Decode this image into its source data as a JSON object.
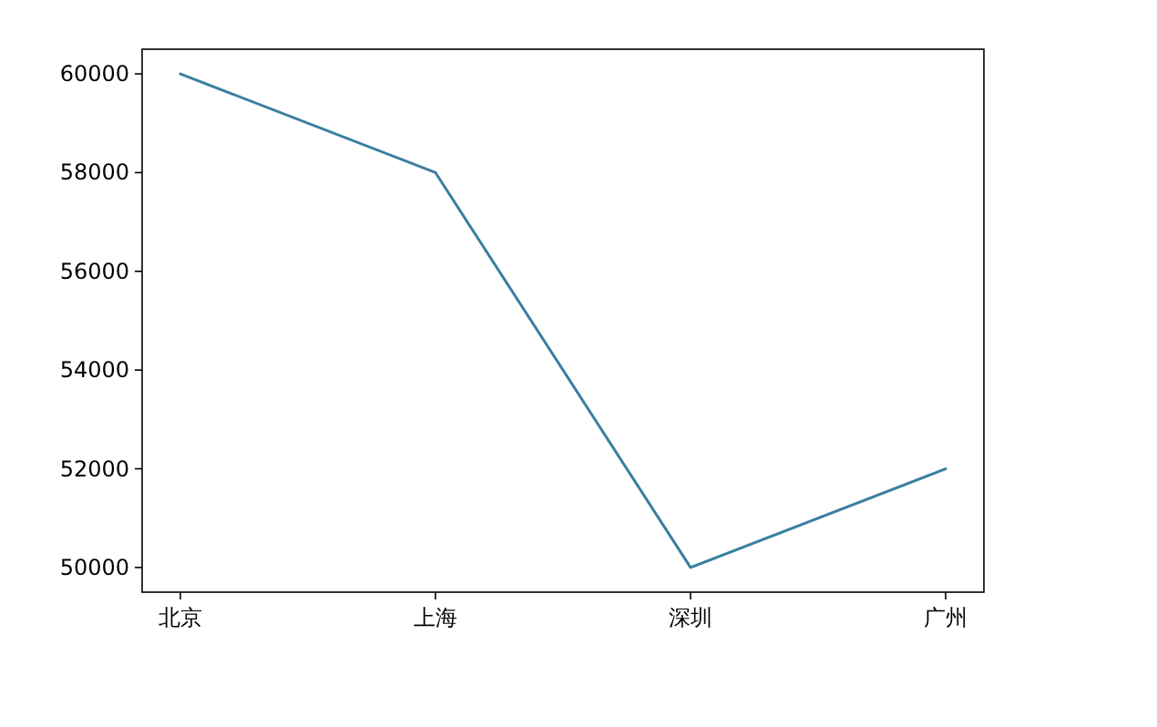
{
  "chart_data": {
    "type": "line",
    "categories": [
      "北京",
      "上海",
      "深圳",
      "广州"
    ],
    "series": [
      {
        "color": "#3b7ea1",
        "values": [
          60000,
          58000,
          50000,
          52000
        ]
      }
    ],
    "ylim": [
      49500,
      60500
    ],
    "yticks": [
      50000,
      52000,
      54000,
      56000,
      58000,
      60000
    ]
  }
}
